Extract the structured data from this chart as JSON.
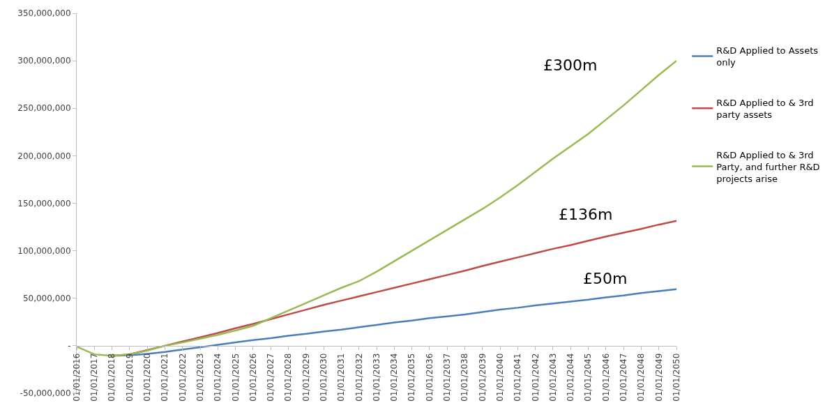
{
  "chart_data": {
    "type": "line",
    "categories": [
      "01/01/2016",
      "01/01/2017",
      "01/01/2018",
      "01/01/2019",
      "01/01/2020",
      "01/01/2021",
      "01/01/2022",
      "01/01/2023",
      "01/01/2024",
      "01/01/2025",
      "01/01/2026",
      "01/01/2027",
      "01/01/2028",
      "01/01/2029",
      "01/01/2030",
      "01/01/2031",
      "01/01/2032",
      "01/01/2033",
      "01/01/2034",
      "01/01/2035",
      "01/01/2036",
      "01/01/2037",
      "01/01/2038",
      "01/01/2039",
      "01/01/2040",
      "01/01/2041",
      "01/01/2042",
      "01/01/2043",
      "01/01/2044",
      "01/01/2045",
      "01/01/2046",
      "01/01/2047",
      "01/01/2048",
      "01/01/2049",
      "01/01/2050"
    ],
    "series": [
      {
        "name": "R&D Applied to Assets only",
        "color": "#4a7ebb",
        "values": [
          null,
          null,
          -10500000,
          -10000000,
          -8500000,
          -6500000,
          -4000000,
          -1500000,
          1000000,
          3500000,
          6000000,
          8000000,
          10500000,
          12500000,
          15000000,
          17000000,
          19500000,
          22000000,
          24500000,
          26500000,
          29000000,
          31000000,
          33000000,
          35500000,
          38000000,
          40000000,
          42500000,
          44500000,
          46500000,
          48500000,
          51000000,
          53000000,
          55500000,
          57500000,
          59500000
        ]
      },
      {
        "name": "R&D Applied to & 3rd party assets",
        "color": "#be4b48",
        "values": [
          null,
          null,
          -10500000,
          -9000000,
          -4500000,
          0,
          4500000,
          9000000,
          13500000,
          18500000,
          23000000,
          28000000,
          33000000,
          38000000,
          43000000,
          47500000,
          52000000,
          56500000,
          61000000,
          65500000,
          70000000,
          74500000,
          79000000,
          84000000,
          88500000,
          93000000,
          97500000,
          102000000,
          106000000,
          110500000,
          115000000,
          119000000,
          123000000,
          127500000,
          131500000
        ]
      },
      {
        "name": "R&D Applied to & 3rd Party, and further R&D projects arise",
        "color": "#98b954",
        "values": [
          -1000000,
          -9000000,
          -10500000,
          -9000000,
          -5000000,
          0,
          3500000,
          7500000,
          11500000,
          16000000,
          21000000,
          29000000,
          37000000,
          45000000,
          53000000,
          61000000,
          68000000,
          78000000,
          89000000,
          100000000,
          111000000,
          122000000,
          133000000,
          144000000,
          156000000,
          169000000,
          183000000,
          197000000,
          210000000,
          223000000,
          238000000,
          253000000,
          269000000,
          285000000,
          300000000
        ]
      }
    ],
    "ylim": [
      -50000000,
      350000000
    ],
    "yticks": [
      {
        "value": -50000000,
        "label": "-50,000,000"
      },
      {
        "value": 0,
        "label": "-"
      },
      {
        "value": 50000000,
        "label": "50,000,000"
      },
      {
        "value": 100000000,
        "label": "100,000,000"
      },
      {
        "value": 150000000,
        "label": "150,000,000"
      },
      {
        "value": 200000000,
        "label": "200,000,000"
      },
      {
        "value": 250000000,
        "label": "250,000,000"
      },
      {
        "value": 300000000,
        "label": "300,000,000"
      },
      {
        "value": 350000000,
        "label": "350,000,000"
      }
    ],
    "annotations": [
      "£300m",
      "£136m",
      "£50m"
    ],
    "grid": false,
    "legend": "right",
    "marker": "none",
    "line_style": "solid"
  }
}
